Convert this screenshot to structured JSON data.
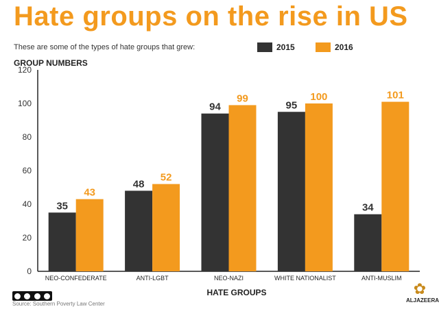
{
  "header": {
    "title": "Hate groups on the rise in US",
    "subtitle": "These are some of the types of hate groups that grew:"
  },
  "legend": [
    {
      "label": "2015",
      "color": "#333333"
    },
    {
      "label": "2016",
      "color": "#f39a1e"
    }
  ],
  "footer": {
    "source": "Source: Southern Poverty Law Center",
    "brand": "ALJAZEERA"
  },
  "chart_data": {
    "type": "bar",
    "title": "Hate groups on the rise in US",
    "subtitle": "These are some of the types of hate groups that grew:",
    "ylabel": "GROUP NUMBERS",
    "xlabel": "HATE GROUPS",
    "categories": [
      "NEO-CONFEDERATE",
      "ANTI-LGBT",
      "NEO-NAZI",
      "WHITE NATIONALIST",
      "ANTI-MUSLIM"
    ],
    "series": [
      {
        "name": "2015",
        "color": "#333333",
        "values": [
          35,
          48,
          94,
          95,
          34
        ]
      },
      {
        "name": "2016",
        "color": "#f39a1e",
        "values": [
          43,
          52,
          99,
          100,
          101
        ]
      }
    ],
    "ylim": [
      0,
      120
    ],
    "yticks": [
      0,
      20,
      40,
      60,
      80,
      100,
      120
    ],
    "grid": false,
    "legend_position": "top-right"
  }
}
